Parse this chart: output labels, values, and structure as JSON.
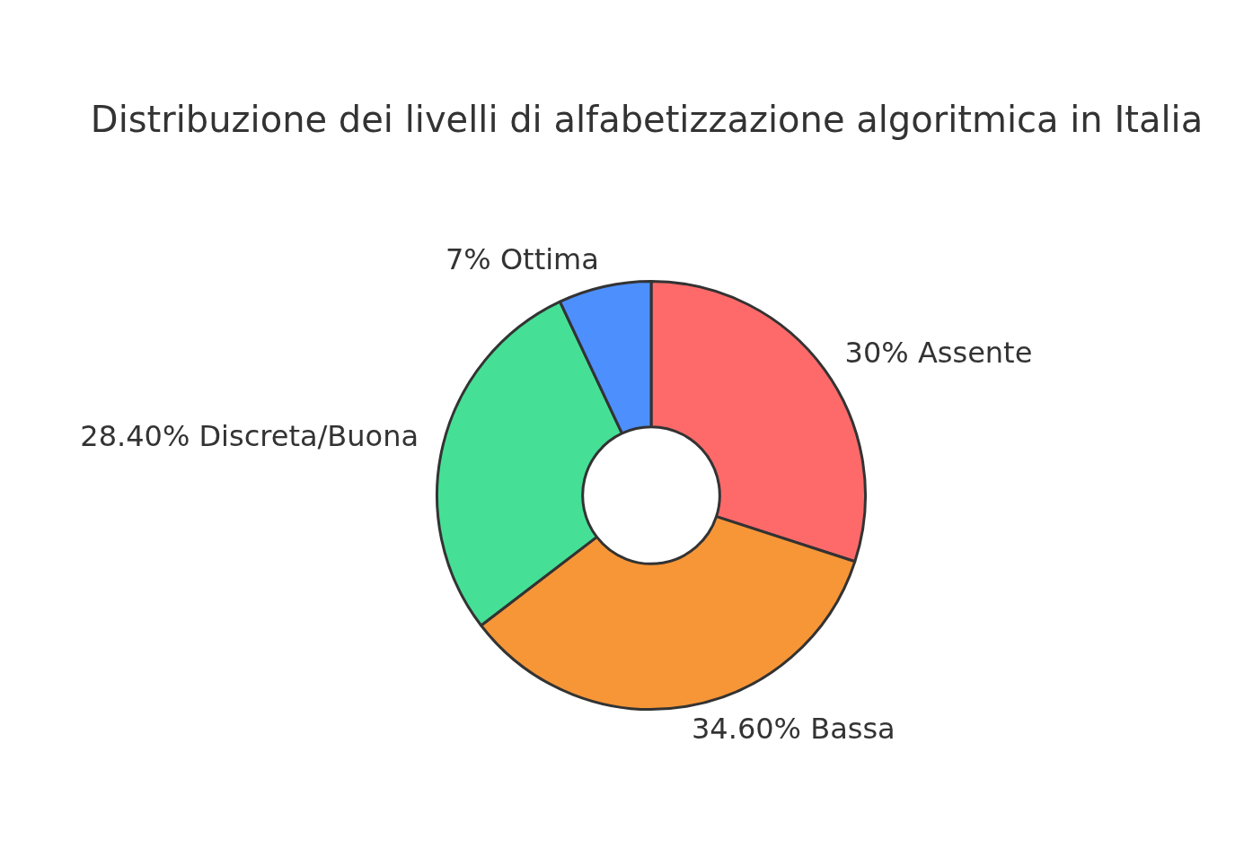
{
  "chart_data": {
    "type": "donut",
    "title": "Distribuzione dei livelli di alfabetizzazione algoritmica in Italia",
    "categories": [
      "Assente",
      "Bassa",
      "Discreta/Buona",
      "Ottima"
    ],
    "values": [
      30,
      34.6,
      28.4,
      7
    ],
    "value_labels": [
      "30%",
      "34.60%",
      "28.40%",
      "7%"
    ],
    "colors": [
      "#fe6a6a",
      "#f79637",
      "#45e096",
      "#4d8ffd"
    ],
    "legend": false
  }
}
